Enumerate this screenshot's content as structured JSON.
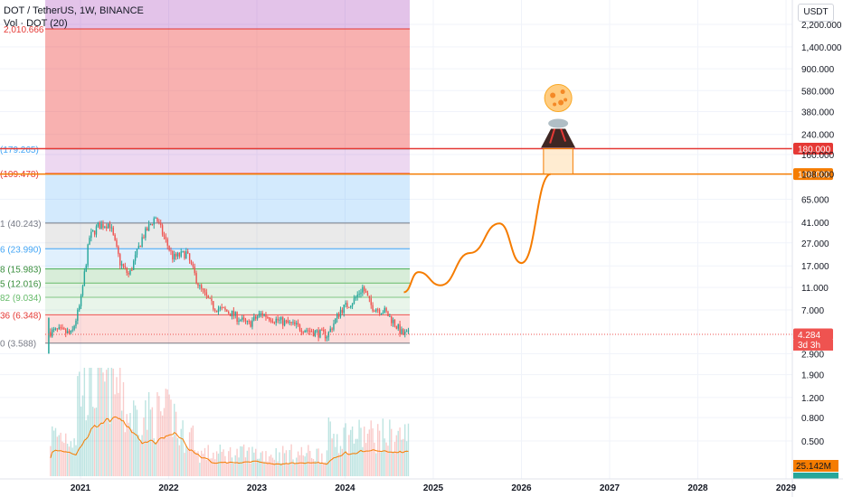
{
  "header": {
    "symbol_line": "DOT / TetherUS, 1W, BINANCE",
    "volume_line": "Vol · DOT (20)"
  },
  "toolbar": {
    "currency": "USDT"
  },
  "colors": {
    "up": "#26a69a",
    "down": "#ef5350",
    "volume_ma": "#f57c00",
    "projection": "#f57c00",
    "level_red": "#e53935",
    "level_orange": "#f57c00"
  },
  "chart_data": {
    "type": "line",
    "yscale": "log",
    "y_ticks": [
      "2,200.000",
      "1,400.000",
      "900.000",
      "580.000",
      "380.000",
      "240.000",
      "160.000",
      "108.000",
      "65.000",
      "41.000",
      "27.000",
      "17.000",
      "11.000",
      "7.000",
      "4.284",
      "2.900",
      "1.900",
      "1.200",
      "0.800",
      "0.500"
    ],
    "x_ticks": [
      "2021",
      "2022",
      "2023",
      "2024",
      "2025",
      "2026",
      "2027",
      "2028",
      "2029"
    ],
    "fib_levels": [
      {
        "label": "2,010.666",
        "value": 2010.666
      },
      {
        "label": "(179.265)",
        "value": 179.265
      },
      {
        "label": "(109.478)",
        "value": 109.478
      },
      {
        "label": "1 (40.243)",
        "value": 40.243
      },
      {
        "label": "6 (23.990)",
        "value": 23.99
      },
      {
        "label": "8 (15.983)",
        "value": 15.983
      },
      {
        "label": "5 (12.016)",
        "value": 12.016
      },
      {
        "label": "82 (9.034)",
        "value": 9.034
      },
      {
        "label": "36 (6.348)",
        "value": 6.348
      },
      {
        "label": "0 (3.588)",
        "value": 3.588
      }
    ],
    "price_badges": [
      {
        "label": "180.000",
        "value": 180.0,
        "color": "#e53935"
      },
      {
        "label": "108.000",
        "value": 108.0,
        "color": "#f57c00"
      },
      {
        "label": "4.284",
        "value": 4.284,
        "color": "#ef5350"
      }
    ],
    "countdown": "3d 3h",
    "volume_badge": "25.142M",
    "projection": {
      "x": [
        "2024-09",
        "2024-11",
        "2025-02",
        "2025-06",
        "2025-10",
        "2026-01",
        "2026-05"
      ],
      "y": [
        10,
        15,
        11.5,
        22,
        40,
        18,
        108
      ]
    },
    "target": {
      "from": "2026-04",
      "to": "2026-08",
      "low": 108,
      "high": 180
    }
  }
}
